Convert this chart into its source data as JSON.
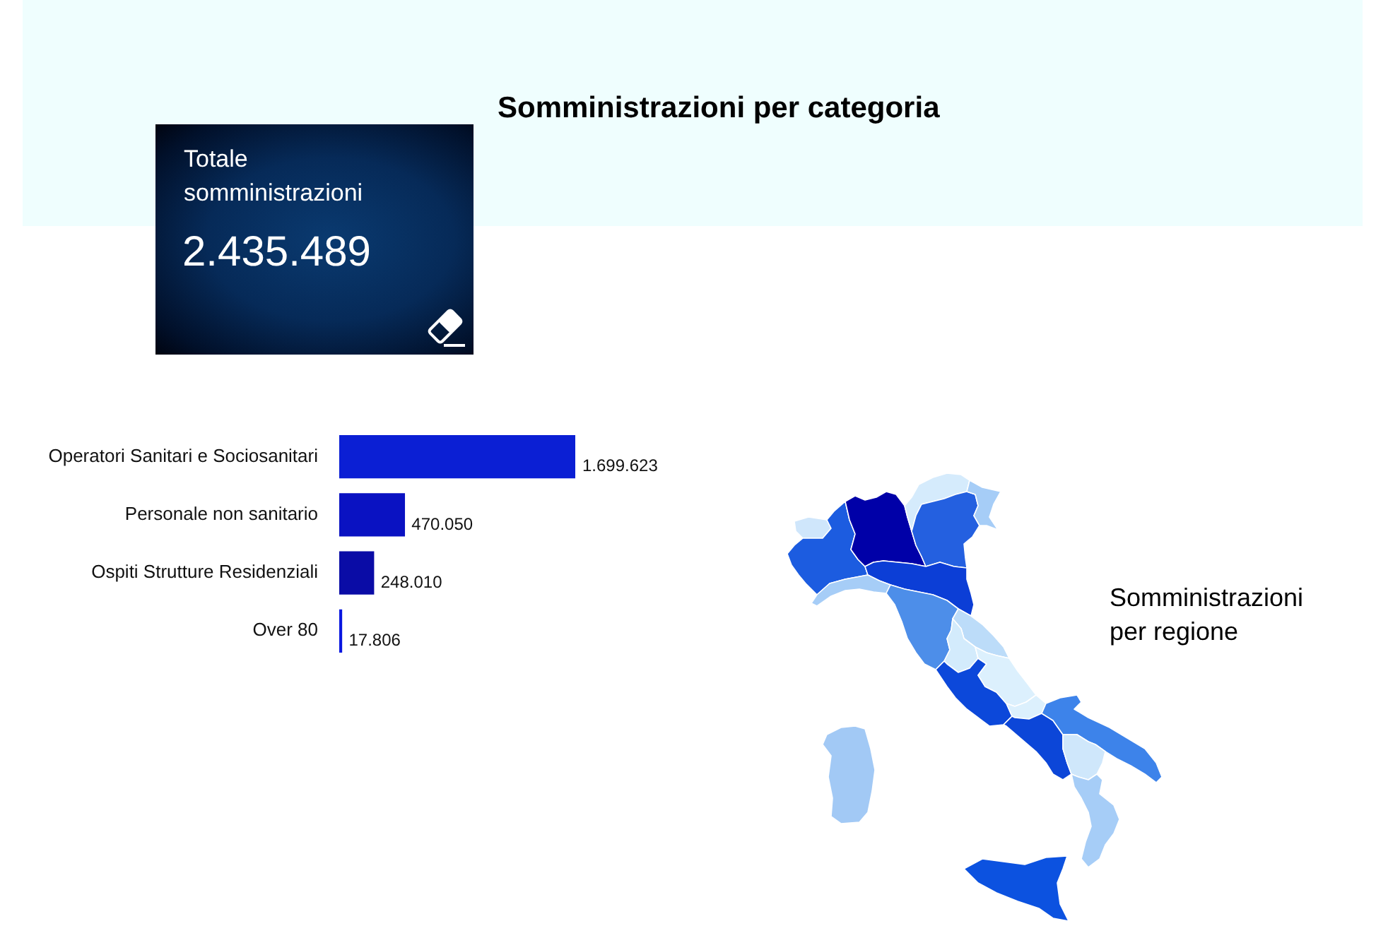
{
  "chart_data": [
    {
      "type": "other",
      "title": "Totale somministrazioni",
      "annotations": [
        "2.435.489"
      ]
    },
    {
      "type": "bar",
      "orientation": "horizontal",
      "title": "Somministrazioni per categoria",
      "categories": [
        "Operatori Sanitari e Sociosanitari",
        "Personale non sanitario",
        "Ospiti Strutture Residenziali",
        "Over 80"
      ],
      "values": [
        1699623,
        470050,
        248010,
        17806
      ],
      "colors": [
        "#0b1fd4",
        "#0a12c2",
        "#0a0ca6",
        "#0a18e0"
      ],
      "value_labels": [
        "1.699.623",
        "470.050",
        "248.010",
        "17.806"
      ]
    },
    {
      "type": "other",
      "title": "Somministrazioni per regione"
    }
  ]
}
